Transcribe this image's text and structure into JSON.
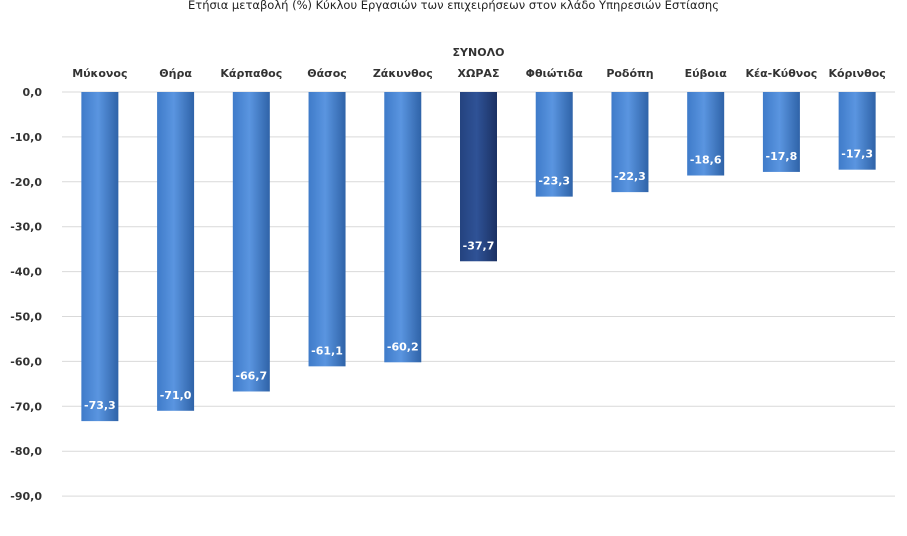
{
  "chart_data": {
    "type": "bar",
    "title": "Ετήσια μεταβολή (%) Κύκλου Εργασιών των επιχειρήσεων στον κλάδο Υπηρεσιών Εστίασης",
    "categories": [
      [
        "Μύκονος"
      ],
      [
        "Θήρα"
      ],
      [
        "Κάρπαθος"
      ],
      [
        "Θάσος"
      ],
      [
        "Ζάκυνθος"
      ],
      [
        "ΣΥΝΟΛΟ",
        "ΧΩΡΑΣ"
      ],
      [
        "Φθιώτιδα"
      ],
      [
        "Ροδόπη"
      ],
      [
        "Εύβοια"
      ],
      [
        "Κέα-Κύθνος"
      ],
      [
        "Κόρινθος"
      ]
    ],
    "values": [
      -73.3,
      -71.0,
      -66.7,
      -61.1,
      -60.2,
      -37.7,
      -23.3,
      -22.3,
      -18.6,
      -17.8,
      -17.3
    ],
    "data_labels": [
      "-73,3",
      "-71,0",
      "-66,7",
      "-61,1",
      "-60,2",
      "-37,7",
      "-23,3",
      "-22,3",
      "-18,6",
      "-17,8",
      "-17,3"
    ],
    "highlight_index": 5,
    "colors": {
      "bar": "#4a86d4",
      "bar_dark": "#2f63a8",
      "highlight": "#2a4a8a",
      "highlight_dark": "#1b3163"
    },
    "ylim": [
      -100,
      0
    ],
    "yticks": [
      0,
      -10,
      -20,
      -30,
      -40,
      -50,
      -60,
      -70,
      -80,
      -90
    ],
    "ytick_labels": [
      "0,0",
      "-10,0",
      "-20,0",
      "-30,0",
      "-40,0",
      "-50,0",
      "-60,0",
      "-70,0",
      "-80,0",
      "-90,0"
    ],
    "grid": true,
    "xlabel": "",
    "ylabel": ""
  }
}
